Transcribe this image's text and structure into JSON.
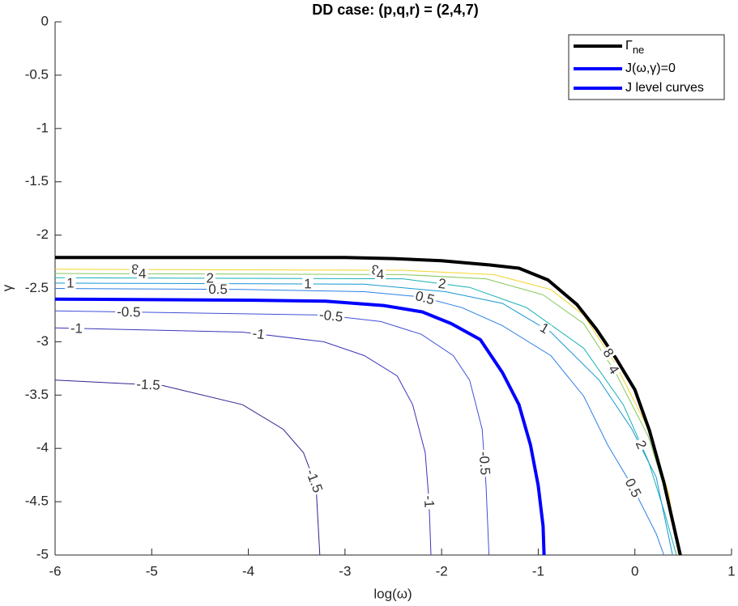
{
  "chart_data": {
    "type": "contour",
    "title": "DD case: (p,q,r) = (2,4,7)",
    "x_label": "log(ω)",
    "y_label": "γ",
    "xlim": [
      -6,
      1
    ],
    "ylim": [
      -5,
      0
    ],
    "xticks": [
      -6,
      -5,
      -4,
      -3,
      -2,
      -1,
      0,
      1
    ],
    "yticks": [
      0,
      -0.5,
      -1,
      -1.5,
      -2,
      -2.5,
      -3,
      -3.5,
      -4,
      -4.5,
      -5
    ],
    "legend": "top-right",
    "series": [
      {
        "name": "Γ",
        "name_subscript": "ne",
        "color": "#000000",
        "x": [
          -6,
          -5,
          -4,
          -3,
          -2.5,
          -2,
          -1.5,
          -1.2,
          -0.9,
          -0.6,
          -0.4,
          -0.2,
          0,
          0.15,
          0.3,
          0.47
        ],
        "y": [
          -2.21,
          -2.21,
          -2.21,
          -2.21,
          -2.22,
          -2.24,
          -2.28,
          -2.31,
          -2.42,
          -2.65,
          -2.88,
          -3.15,
          -3.45,
          -3.83,
          -4.32,
          -5
        ]
      },
      {
        "name": "J(ω,γ)=0",
        "color": "#0000ff",
        "x": [
          -6,
          -4,
          -3.2,
          -2.6,
          -2.2,
          -1.9,
          -1.6,
          -1.37,
          -1.2,
          -1.08,
          -1,
          -0.95,
          -0.94
        ],
        "y": [
          -2.6,
          -2.61,
          -2.62,
          -2.66,
          -2.72,
          -2.83,
          -2.98,
          -3.29,
          -3.59,
          -3.97,
          -4.35,
          -4.73,
          -5
        ]
      }
    ],
    "contours": {
      "name": "J level curves",
      "legend_color": "#0000ff",
      "levels": [
        {
          "level": 8,
          "color": "#f2d52b",
          "x": [
            -6,
            -2.4,
            -1.46,
            -0.87,
            -0.53,
            -0.2,
            0.14,
            0.35,
            0.45
          ],
          "y": [
            -2.32,
            -2.33,
            -2.37,
            -2.51,
            -2.75,
            -3.21,
            -3.82,
            -4.42,
            -5
          ]
        },
        {
          "level": 4,
          "color": "#86c65c",
          "x": [
            -6,
            -2.4,
            -1.54,
            -0.95,
            -0.53,
            -0.2,
            0.14,
            0.35,
            0.46
          ],
          "y": [
            -2.36,
            -2.37,
            -2.41,
            -2.56,
            -2.83,
            -3.29,
            -3.89,
            -4.5,
            -5
          ]
        },
        {
          "level": 2,
          "color": "#14b0b4",
          "x": [
            -6,
            -2.4,
            -1.71,
            -1.12,
            -0.53,
            -0.12,
            0.14,
            0.3,
            0.43
          ],
          "y": [
            -2.4,
            -2.41,
            -2.49,
            -2.68,
            -3.06,
            -3.59,
            -4.12,
            -4.58,
            -5
          ]
        },
        {
          "level": 1,
          "color": "#1597d4",
          "x": [
            -6,
            -2.8,
            -1.96,
            -1.37,
            -0.87,
            -0.37,
            -0.03,
            0.22,
            0.39
          ],
          "y": [
            -2.45,
            -2.46,
            -2.53,
            -2.64,
            -2.91,
            -3.36,
            -3.82,
            -4.27,
            -5
          ]
        },
        {
          "level": 0.5,
          "color": "#2b7fe6",
          "x": [
            -6,
            -4.06,
            -2.8,
            -2.21,
            -1.79,
            -1.37,
            -0.87,
            -0.53,
            -0.28,
            -0.03,
            0.22,
            0.3
          ],
          "y": [
            -2.5,
            -2.51,
            -2.53,
            -2.58,
            -2.68,
            -2.85,
            -3.13,
            -3.51,
            -3.97,
            -4.35,
            -4.8,
            -5
          ]
        },
        {
          "level": -0.5,
          "color": "#4050d8",
          "x": [
            -6,
            -3.22,
            -2.63,
            -2.21,
            -1.88,
            -1.71,
            -1.58,
            -1.54,
            -1.51
          ],
          "y": [
            -2.71,
            -2.75,
            -2.81,
            -2.93,
            -3.13,
            -3.36,
            -3.82,
            -4.35,
            -5
          ]
        },
        {
          "level": -1,
          "color": "#3a35b8",
          "x": [
            -6,
            -4.06,
            -3.22,
            -2.8,
            -2.46,
            -2.3,
            -2.17,
            -2.13,
            -2.11
          ],
          "y": [
            -2.87,
            -2.91,
            -3,
            -3.13,
            -3.32,
            -3.59,
            -4.04,
            -4.5,
            -5
          ]
        },
        {
          "level": -1.5,
          "color": "#35208f",
          "x": [
            -6,
            -4.89,
            -4.06,
            -3.64,
            -3.43,
            -3.3,
            -3.26
          ],
          "y": [
            -3.36,
            -3.41,
            -3.59,
            -3.82,
            -4.04,
            -4.35,
            -5
          ]
        }
      ]
    }
  }
}
